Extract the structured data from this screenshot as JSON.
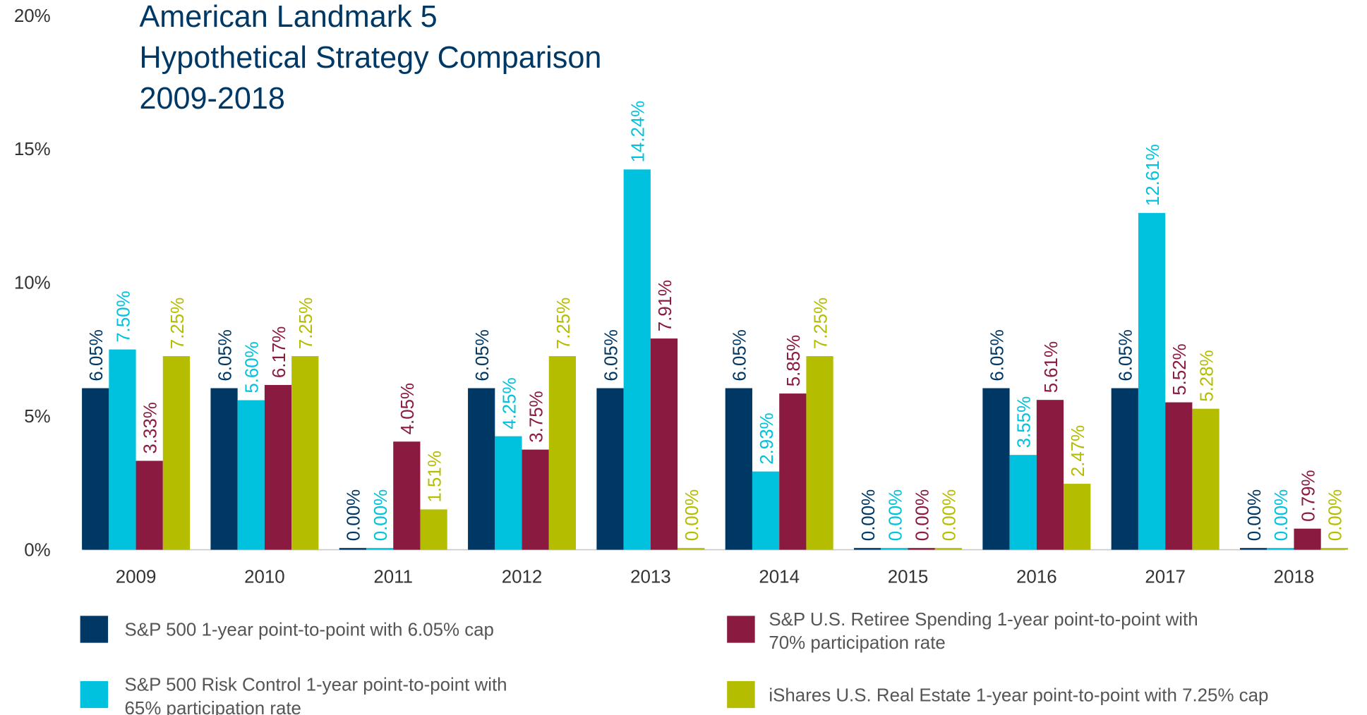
{
  "chart_data": {
    "type": "bar",
    "title": [
      "American Landmark 5",
      "Hypothetical Strategy Comparison",
      "2009-2018"
    ],
    "categories": [
      "2009",
      "2010",
      "2011",
      "2012",
      "2013",
      "2014",
      "2015",
      "2016",
      "2017",
      "2018"
    ],
    "series": [
      {
        "name": "S&P 500 1-year point-to-point with 6.05% cap",
        "color": "#003865",
        "values": [
          6.05,
          6.05,
          0,
          6.05,
          6.05,
          6.05,
          0,
          6.05,
          6.05,
          0
        ],
        "value_labels": [
          "6.05%",
          "6.05%",
          "0.00%",
          "6.05%",
          "6.05%",
          "6.05%",
          "0.00%",
          "6.05%",
          "6.05%",
          "0.00%"
        ]
      },
      {
        "name": "S&P 500 Risk Control 1-year point-to-point with 65% participation rate",
        "color": "#00c1de",
        "values": [
          7.5,
          5.6,
          0,
          4.25,
          14.24,
          2.93,
          0,
          3.55,
          12.61,
          0
        ],
        "value_labels": [
          "7.50%",
          "5.60%",
          "0.00%",
          "4.25%",
          "14.24%",
          "2.93%",
          "0.00%",
          "3.55%",
          "12.61%",
          "0.00%"
        ]
      },
      {
        "name": "S&P U.S. Retiree Spending 1-year point-to-point with 70% participation rate",
        "color": "#8b1a40",
        "values": [
          3.33,
          6.17,
          4.05,
          3.75,
          7.91,
          5.85,
          0,
          5.61,
          5.52,
          0.79
        ],
        "value_labels": [
          "3.33%",
          "6.17%",
          "4.05%",
          "3.75%",
          "7.91%",
          "5.85%",
          "0.00%",
          "5.61%",
          "5.52%",
          "0.79%"
        ]
      },
      {
        "name": "iShares U.S. Real Estate 1-year point-to-point with 7.25% cap",
        "color": "#b5bd00",
        "values": [
          7.25,
          7.25,
          1.51,
          7.25,
          0,
          7.25,
          0,
          2.47,
          5.28,
          0
        ],
        "value_labels": [
          "7.25%",
          "7.25%",
          "1.51%",
          "7.25%",
          "0.00%",
          "7.25%",
          "0.00%",
          "2.47%",
          "5.28%",
          "0.00%"
        ]
      }
    ],
    "ylim": [
      0,
      20
    ],
    "yticks": [
      {
        "value": 0,
        "label": "0%"
      },
      {
        "value": 5,
        "label": "5%"
      },
      {
        "value": 10,
        "label": "10%"
      },
      {
        "value": 15,
        "label": "15%"
      },
      {
        "value": 20,
        "label": "20%"
      }
    ],
    "grid": false
  }
}
